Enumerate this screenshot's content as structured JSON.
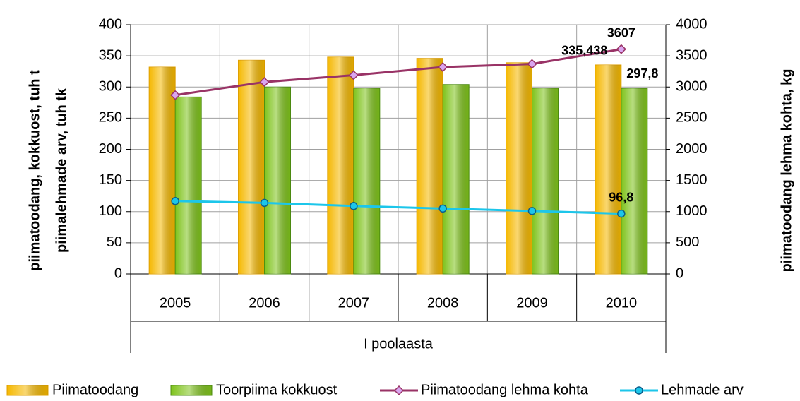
{
  "chart_data": {
    "type": "bar-line",
    "x_label": "I poolaasta",
    "y_label": [
      "piimatoodang, kokkuost,  tuh t",
      "piimalehmade arv, tuh tk"
    ],
    "y2_label": "piimatoodang lehma kohta, kg",
    "categories": [
      "2005",
      "2006",
      "2007",
      "2008",
      "2009",
      "2010"
    ],
    "series": [
      {
        "name": "Piimatoodang",
        "kind": "bar",
        "color": "#f5b800",
        "values": [
          332,
          343,
          348,
          346,
          339,
          335.438
        ],
        "value_labels": [
          null,
          null,
          null,
          null,
          null,
          "335,438"
        ]
      },
      {
        "name": "Toorpiima kokkuost",
        "kind": "bar",
        "color": "#7fc31c",
        "values": [
          284,
          300,
          298,
          304,
          298,
          297.8
        ],
        "value_labels": [
          null,
          null,
          null,
          null,
          null,
          "297,8"
        ]
      },
      {
        "name": "Piimatoodang lehma kohta",
        "kind": "line",
        "axis": "y2",
        "color": "#993366",
        "marker": "diamond",
        "values": [
          2870,
          3080,
          3190,
          3320,
          3370,
          3607
        ],
        "value_labels": [
          null,
          null,
          null,
          null,
          null,
          "3607"
        ]
      },
      {
        "name": "Lehmade arv",
        "kind": "line",
        "color": "#1cc6ea",
        "marker": "circle",
        "values": [
          117,
          114,
          109,
          105,
          101,
          96.8
        ],
        "value_labels": [
          null,
          null,
          null,
          null,
          null,
          "96,8"
        ]
      }
    ],
    "ylim": [
      0,
      400
    ],
    "yticks": [
      0,
      50,
      100,
      150,
      200,
      250,
      300,
      350,
      400
    ],
    "y2lim": [
      0,
      4000
    ],
    "y2ticks": [
      0,
      500,
      1000,
      1500,
      2000,
      2500,
      3000,
      3500,
      4000
    ],
    "grid": true,
    "legend": "bottom"
  }
}
